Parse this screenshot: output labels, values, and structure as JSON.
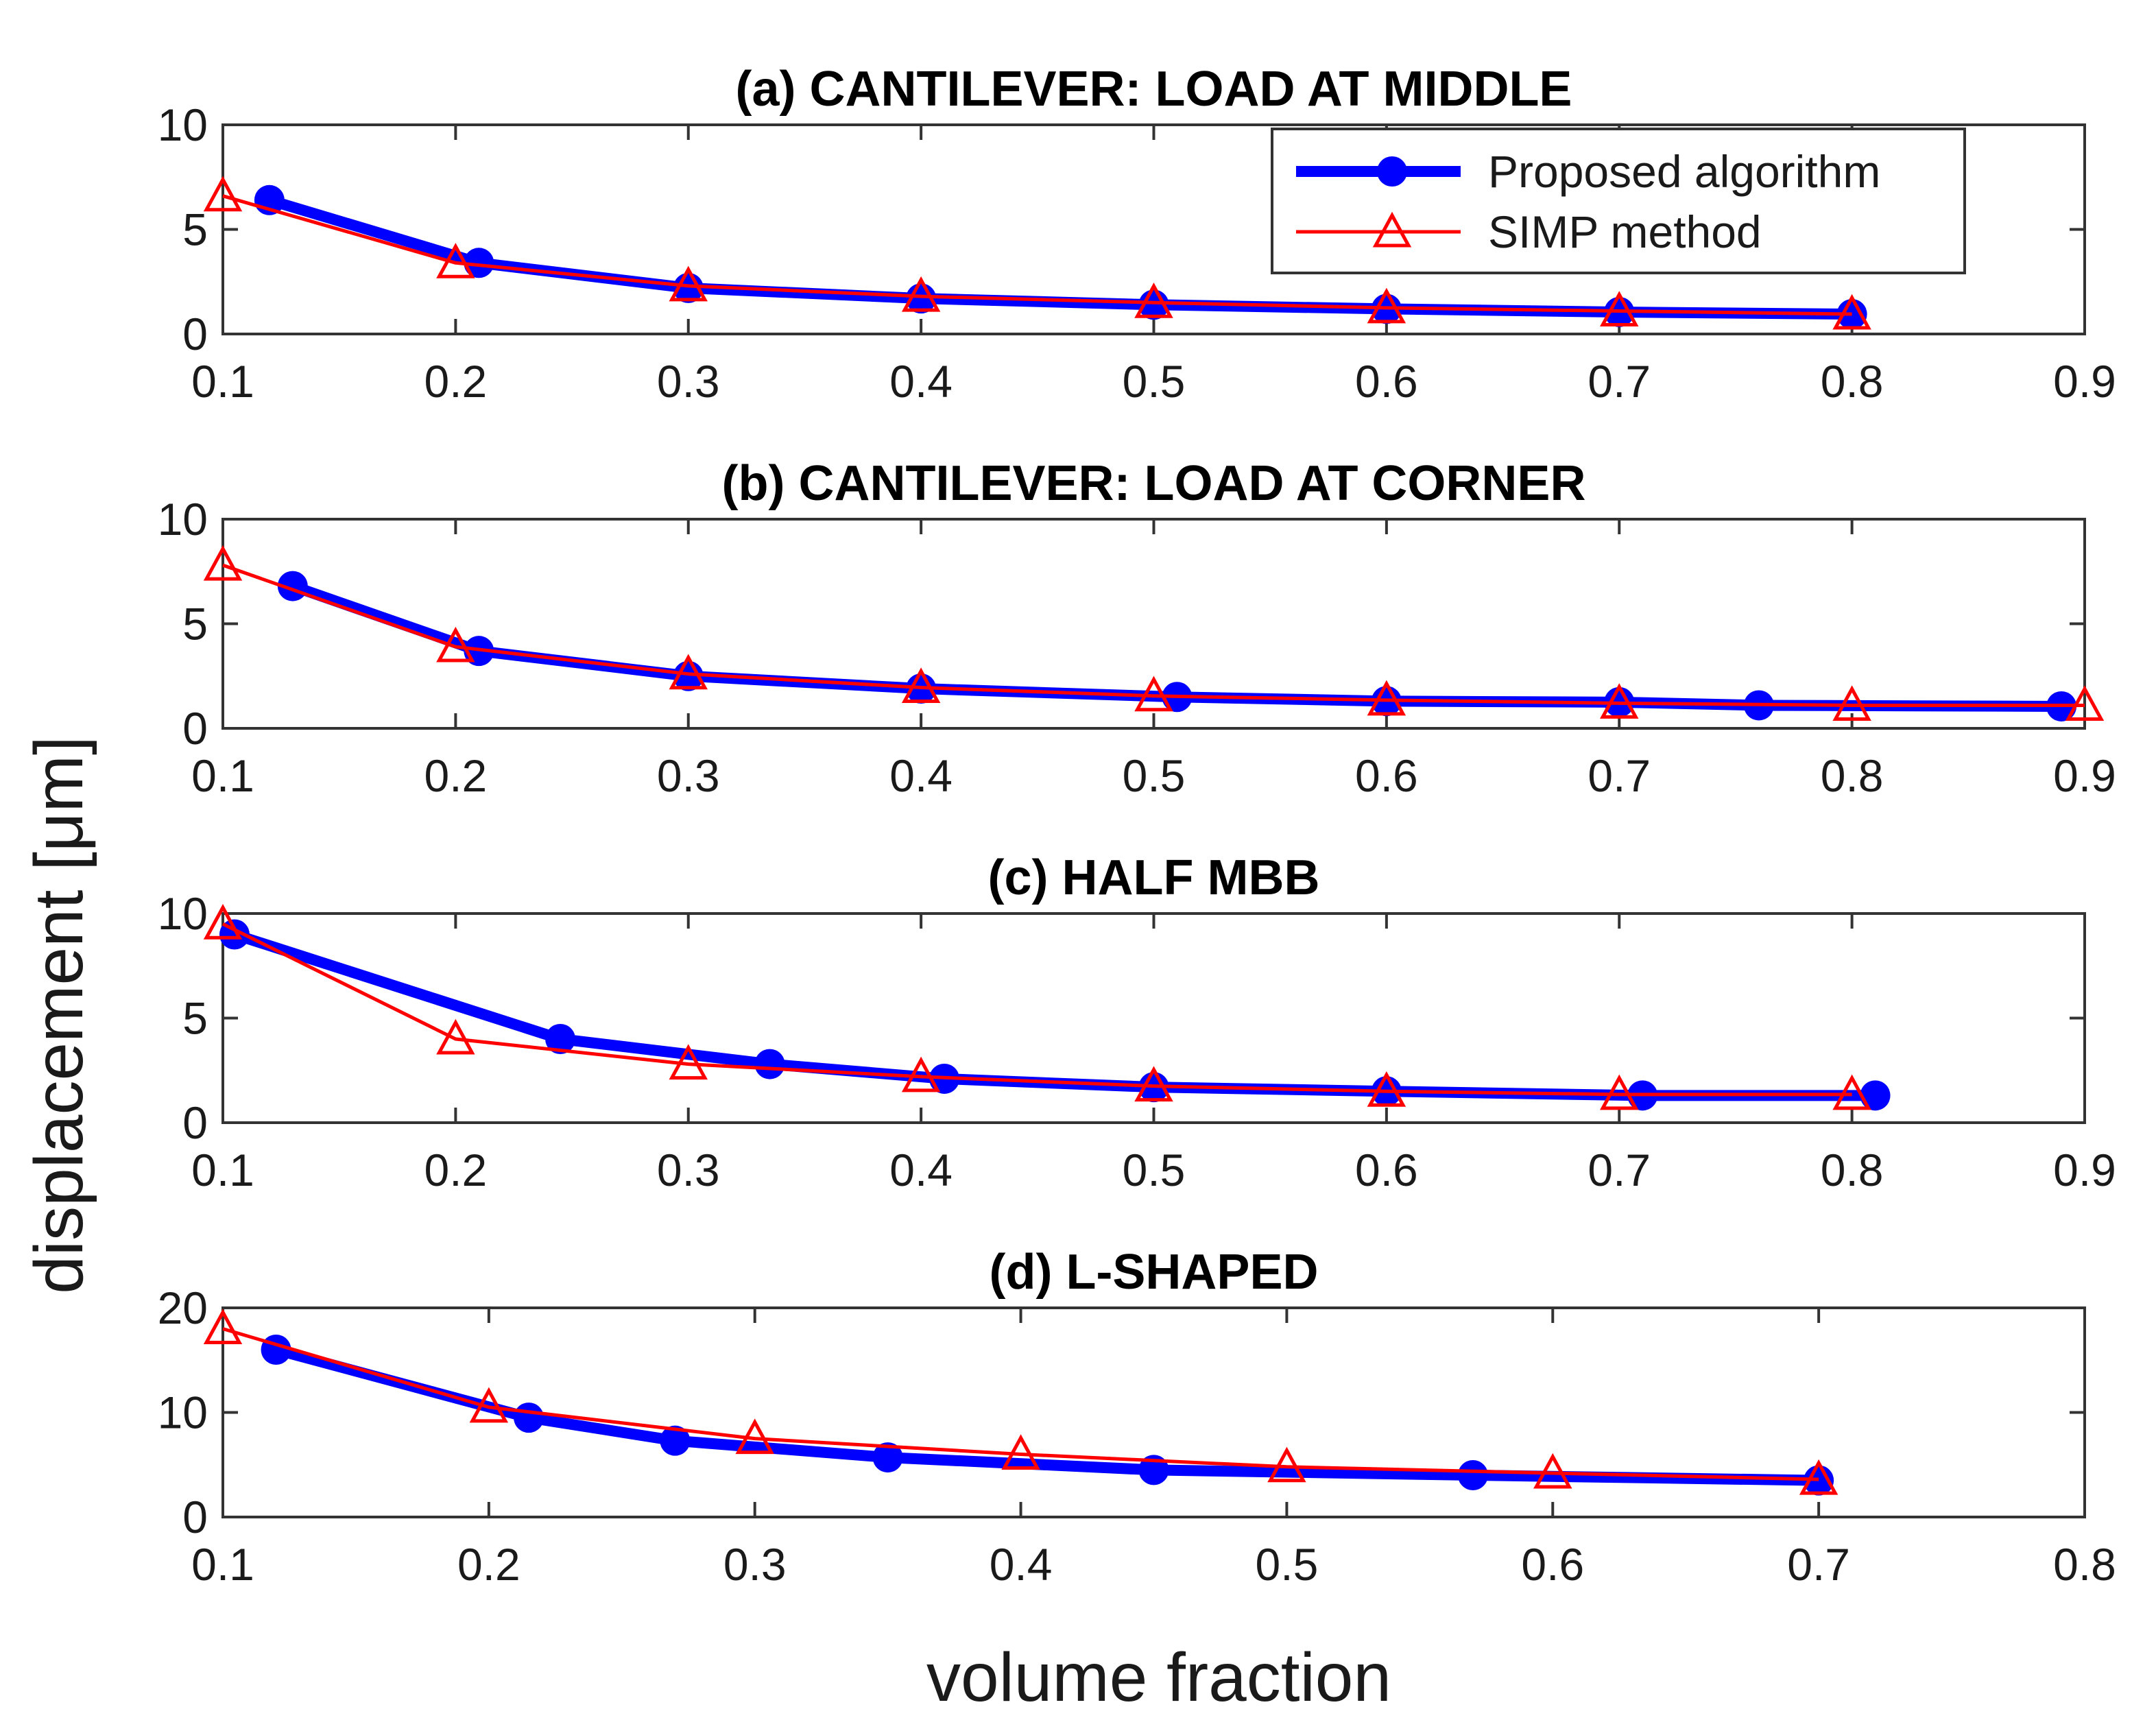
{
  "figure": {
    "ylabel": "displacement [μm]",
    "xlabel": "volume fraction"
  },
  "legend": {
    "position": "top-right of panel (a)",
    "entries": [
      {
        "name": "Proposed algorithm",
        "color": "#0000ff",
        "marker": "circle"
      },
      {
        "name": "SIMP method",
        "color": "#ff0000",
        "marker": "triangle"
      }
    ]
  },
  "chart_data": [
    {
      "type": "line",
      "title": "(a) CANTILEVER: LOAD AT MIDDLE",
      "xlim": [
        0.1,
        0.9
      ],
      "ylim": [
        0,
        10
      ],
      "xticks": [
        "0.1",
        "0.2",
        "0.3",
        "0.4",
        "0.5",
        "0.6",
        "0.7",
        "0.8",
        "0.9"
      ],
      "yticks": [
        "0",
        "5",
        "10"
      ],
      "series": [
        {
          "name": "Proposed algorithm",
          "color": "#0000ff",
          "x": [
            0.12,
            0.21,
            0.3,
            0.4,
            0.5,
            0.6,
            0.7,
            0.8
          ],
          "y": [
            6.4,
            3.4,
            2.2,
            1.7,
            1.4,
            1.2,
            1.05,
            0.95
          ]
        },
        {
          "name": "SIMP method",
          "color": "#ff0000",
          "x": [
            0.1,
            0.2,
            0.3,
            0.4,
            0.5,
            0.6,
            0.7,
            0.8
          ],
          "y": [
            6.6,
            3.4,
            2.3,
            1.8,
            1.5,
            1.25,
            1.1,
            0.95
          ]
        }
      ]
    },
    {
      "type": "line",
      "title": "(b) CANTILEVER: LOAD AT CORNER",
      "xlim": [
        0.1,
        0.9
      ],
      "ylim": [
        0,
        10
      ],
      "xticks": [
        "0.1",
        "0.2",
        "0.3",
        "0.4",
        "0.5",
        "0.6",
        "0.7",
        "0.8",
        "0.9"
      ],
      "yticks": [
        "0",
        "5",
        "10"
      ],
      "series": [
        {
          "name": "Proposed algorithm",
          "color": "#0000ff",
          "x": [
            0.13,
            0.21,
            0.3,
            0.4,
            0.51,
            0.6,
            0.7,
            0.76,
            0.89
          ],
          "y": [
            6.8,
            3.7,
            2.5,
            1.9,
            1.5,
            1.3,
            1.25,
            1.1,
            1.05
          ]
        },
        {
          "name": "SIMP method",
          "color": "#ff0000",
          "x": [
            0.1,
            0.2,
            0.3,
            0.4,
            0.5,
            0.6,
            0.7,
            0.8,
            0.9
          ],
          "y": [
            7.8,
            3.9,
            2.6,
            1.95,
            1.55,
            1.35,
            1.2,
            1.1,
            1.1
          ]
        }
      ]
    },
    {
      "type": "line",
      "title": "(c) HALF MBB",
      "xlim": [
        0.1,
        0.9
      ],
      "ylim": [
        0,
        10
      ],
      "xticks": [
        "0.1",
        "0.2",
        "0.3",
        "0.4",
        "0.5",
        "0.6",
        "0.7",
        "0.8",
        "0.9"
      ],
      "yticks": [
        "0",
        "5",
        "10"
      ],
      "series": [
        {
          "name": "Proposed algorithm",
          "color": "#0000ff",
          "x": [
            0.105,
            0.245,
            0.335,
            0.41,
            0.5,
            0.6,
            0.71,
            0.81
          ],
          "y": [
            9.0,
            4.0,
            2.8,
            2.1,
            1.7,
            1.5,
            1.3,
            1.3
          ]
        },
        {
          "name": "SIMP method",
          "color": "#ff0000",
          "x": [
            0.1,
            0.2,
            0.3,
            0.4,
            0.5,
            0.6,
            0.7,
            0.8
          ],
          "y": [
            9.5,
            4.0,
            2.8,
            2.2,
            1.75,
            1.5,
            1.35,
            1.35
          ]
        }
      ]
    },
    {
      "type": "line",
      "title": "(d) L-SHAPED",
      "xlim": [
        0.1,
        0.8
      ],
      "ylim": [
        0,
        20
      ],
      "xticks": [
        "0.1",
        "0.2",
        "0.3",
        "0.4",
        "0.5",
        "0.6",
        "0.7",
        "0.8"
      ],
      "yticks": [
        "0",
        "10",
        "20"
      ],
      "series": [
        {
          "name": "Proposed algorithm",
          "color": "#0000ff",
          "x": [
            0.12,
            0.215,
            0.27,
            0.35,
            0.45,
            0.57,
            0.7
          ],
          "y": [
            16.0,
            9.5,
            7.3,
            5.7,
            4.5,
            4.0,
            3.5
          ]
        },
        {
          "name": "SIMP method",
          "color": "#ff0000",
          "x": [
            0.1,
            0.2,
            0.3,
            0.4,
            0.5,
            0.6,
            0.7
          ],
          "y": [
            18.0,
            10.5,
            7.5,
            6.0,
            4.8,
            4.2,
            3.6
          ]
        }
      ]
    }
  ]
}
